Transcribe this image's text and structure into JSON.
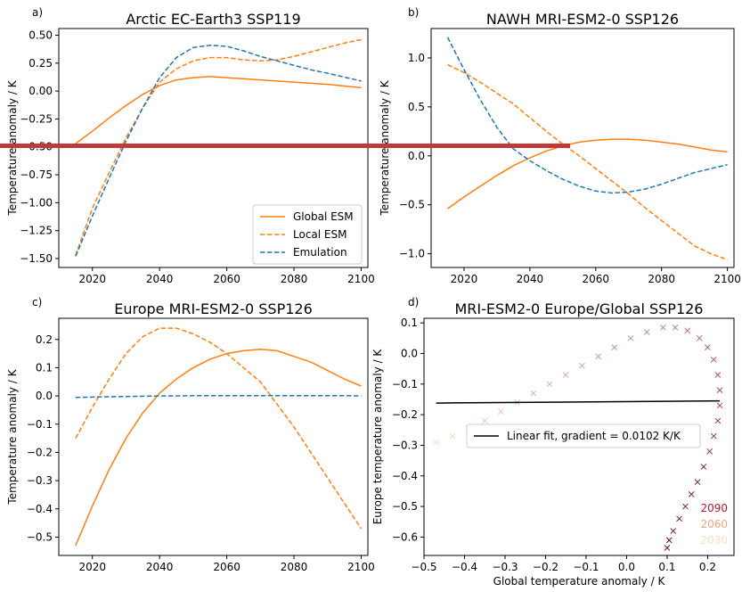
{
  "chart_data": [
    {
      "type": "line",
      "panel_letter": "a)",
      "title": "Arctic EC-Earth3 SSP119",
      "ylabel": "Temperature anomaly / K",
      "xlabel": "",
      "xlim": [
        2010,
        2102
      ],
      "ylim": [
        -1.58,
        0.56
      ],
      "xticks": [
        2020,
        2040,
        2060,
        2080,
        2100
      ],
      "yticks": [
        -1.5,
        -1.25,
        -1.0,
        -0.75,
        -0.5,
        -0.25,
        0.0,
        0.25,
        0.5
      ],
      "ytick_labels": [
        "−1.50",
        "−1.25",
        "−1.00",
        "−0.75",
        "−0.50",
        "−0.25",
        "0.00",
        "0.25",
        "0.50"
      ],
      "legend": {
        "placement": "lower-right",
        "entries": [
          "Global ESM",
          "Local ESM",
          "Emulation"
        ]
      },
      "series": [
        {
          "name": "Global ESM",
          "color": "#ff7f0e",
          "dash": "solid",
          "x": [
            2015,
            2020,
            2025,
            2030,
            2035,
            2040,
            2045,
            2050,
            2055,
            2060,
            2065,
            2070,
            2075,
            2080,
            2085,
            2090,
            2095,
            2100
          ],
          "y": [
            -0.47,
            -0.36,
            -0.24,
            -0.13,
            -0.03,
            0.05,
            0.1,
            0.12,
            0.13,
            0.12,
            0.11,
            0.1,
            0.09,
            0.08,
            0.07,
            0.06,
            0.045,
            0.03
          ]
        },
        {
          "name": "Local ESM",
          "color": "#ff7f0e",
          "dash": "dashed",
          "x": [
            2015,
            2020,
            2025,
            2030,
            2035,
            2040,
            2045,
            2050,
            2055,
            2060,
            2065,
            2070,
            2075,
            2080,
            2085,
            2090,
            2095,
            2100
          ],
          "y": [
            -1.47,
            -1.05,
            -0.73,
            -0.42,
            -0.15,
            0.08,
            0.2,
            0.27,
            0.3,
            0.3,
            0.28,
            0.27,
            0.28,
            0.31,
            0.35,
            0.39,
            0.43,
            0.46
          ]
        },
        {
          "name": "Emulation",
          "color": "#1f77b4",
          "dash": "dashed",
          "x": [
            2015,
            2020,
            2025,
            2030,
            2035,
            2040,
            2045,
            2050,
            2055,
            2060,
            2065,
            2070,
            2075,
            2080,
            2085,
            2090,
            2095,
            2100
          ],
          "y": [
            -1.48,
            -1.12,
            -0.78,
            -0.45,
            -0.15,
            0.12,
            0.3,
            0.39,
            0.41,
            0.4,
            0.36,
            0.31,
            0.27,
            0.23,
            0.19,
            0.16,
            0.125,
            0.09
          ]
        }
      ]
    },
    {
      "type": "line",
      "panel_letter": "b)",
      "title": "NAWH MRI-ESM2-0 SSP126",
      "ylabel": "Temperature anomaly / K",
      "xlabel": "",
      "xlim": [
        2010,
        2102
      ],
      "ylim": [
        -1.14,
        1.3
      ],
      "xticks": [
        2020,
        2040,
        2060,
        2080,
        2100
      ],
      "yticks": [
        -1.0,
        -0.5,
        0.0,
        0.5,
        1.0
      ],
      "ytick_labels": [
        "−1.0",
        "−0.5",
        "0.0",
        "0.5",
        "1.0"
      ],
      "series": [
        {
          "name": "Global ESM",
          "color": "#ff7f0e",
          "dash": "solid",
          "x": [
            2015,
            2020,
            2025,
            2030,
            2035,
            2040,
            2045,
            2050,
            2055,
            2060,
            2065,
            2070,
            2075,
            2080,
            2085,
            2090,
            2095,
            2100
          ],
          "y": [
            -0.54,
            -0.42,
            -0.31,
            -0.2,
            -0.1,
            -0.02,
            0.05,
            0.1,
            0.14,
            0.16,
            0.17,
            0.17,
            0.16,
            0.14,
            0.12,
            0.09,
            0.06,
            0.04
          ]
        },
        {
          "name": "Local ESM",
          "color": "#ff7f0e",
          "dash": "dashed",
          "x": [
            2015,
            2020,
            2025,
            2030,
            2035,
            2040,
            2045,
            2050,
            2055,
            2060,
            2065,
            2070,
            2075,
            2080,
            2085,
            2090,
            2095,
            2100
          ],
          "y": [
            0.93,
            0.85,
            0.75,
            0.64,
            0.53,
            0.39,
            0.25,
            0.12,
            0.0,
            -0.13,
            -0.26,
            -0.39,
            -0.53,
            -0.66,
            -0.79,
            -0.92,
            -1.0,
            -1.06
          ]
        },
        {
          "name": "Emulation",
          "color": "#1f77b4",
          "dash": "dashed",
          "x": [
            2015,
            2020,
            2025,
            2030,
            2035,
            2040,
            2045,
            2050,
            2055,
            2060,
            2065,
            2070,
            2075,
            2080,
            2085,
            2090,
            2095,
            2100
          ],
          "y": [
            1.21,
            0.88,
            0.57,
            0.29,
            0.07,
            -0.05,
            -0.15,
            -0.24,
            -0.31,
            -0.36,
            -0.38,
            -0.37,
            -0.34,
            -0.29,
            -0.23,
            -0.17,
            -0.13,
            -0.09
          ]
        }
      ]
    },
    {
      "type": "line",
      "panel_letter": "c)",
      "title": "Europe MRI-ESM2-0 SSP126",
      "ylabel": "Temperature anomaly / K",
      "xlabel": "",
      "xlim": [
        2010,
        2102
      ],
      "ylim": [
        -0.565,
        0.275
      ],
      "xticks": [
        2020,
        2040,
        2060,
        2080,
        2100
      ],
      "yticks": [
        -0.5,
        -0.4,
        -0.3,
        -0.2,
        -0.1,
        0.0,
        0.1,
        0.2
      ],
      "ytick_labels": [
        "−0.5",
        "−0.4",
        "−0.3",
        "−0.2",
        "−0.1",
        "0.0",
        "0.1",
        "0.2"
      ],
      "series": [
        {
          "name": "Global ESM",
          "color": "#ff7f0e",
          "dash": "solid",
          "x": [
            2015,
            2020,
            2025,
            2030,
            2035,
            2040,
            2045,
            2050,
            2055,
            2060,
            2065,
            2070,
            2075,
            2080,
            2085,
            2090,
            2095,
            2100
          ],
          "y": [
            -0.53,
            -0.39,
            -0.26,
            -0.15,
            -0.06,
            0.01,
            0.06,
            0.1,
            0.13,
            0.15,
            0.16,
            0.165,
            0.16,
            0.14,
            0.12,
            0.09,
            0.06,
            0.035
          ]
        },
        {
          "name": "Local ESM",
          "color": "#ff7f0e",
          "dash": "dashed",
          "x": [
            2015,
            2020,
            2025,
            2030,
            2035,
            2040,
            2045,
            2050,
            2055,
            2060,
            2065,
            2070,
            2075,
            2080,
            2085,
            2090,
            2095,
            2100
          ],
          "y": [
            -0.15,
            -0.04,
            0.06,
            0.15,
            0.21,
            0.24,
            0.24,
            0.22,
            0.19,
            0.15,
            0.1,
            0.05,
            -0.03,
            -0.11,
            -0.2,
            -0.29,
            -0.38,
            -0.47
          ]
        },
        {
          "name": "Emulation",
          "color": "#1f77b4",
          "dash": "dashed",
          "x": [
            2015,
            2020,
            2025,
            2030,
            2035,
            2040,
            2045,
            2050,
            2055,
            2060,
            2065,
            2070,
            2075,
            2080,
            2085,
            2090,
            2095,
            2100
          ],
          "y": [
            -0.005,
            -0.004,
            -0.003,
            -0.002,
            -0.001,
            0.0,
            0.0,
            0.001,
            0.001,
            0.001,
            0.001,
            0.001,
            0.001,
            0.001,
            0.001,
            0.001,
            0.001,
            0.0
          ]
        }
      ]
    },
    {
      "type": "scatter",
      "panel_letter": "d)",
      "title": "MRI-ESM2-0 Europe/Global SSP126",
      "xlabel": "Global temperature anomaly / K",
      "ylabel": "Europe temperature anomaly / K",
      "xlim": [
        -0.5,
        0.265
      ],
      "ylim": [
        -0.66,
        0.115
      ],
      "xticks": [
        -0.5,
        -0.4,
        -0.3,
        -0.2,
        -0.1,
        0.0,
        0.1,
        0.2
      ],
      "xtick_labels": [
        "−0.5",
        "−0.4",
        "−0.3",
        "−0.2",
        "−0.1",
        "0.0",
        "0.1",
        "0.2"
      ],
      "yticks": [
        -0.6,
        -0.5,
        -0.4,
        -0.3,
        -0.2,
        -0.1,
        0.0,
        0.1
      ],
      "ytick_labels": [
        "−0.6",
        "−0.5",
        "−0.4",
        "−0.3",
        "−0.2",
        "−0.1",
        "0.0",
        "0.1"
      ],
      "year_labels": [
        {
          "text": "2090",
          "color": "#b2182b"
        },
        {
          "text": "2060",
          "color": "#f4a582"
        },
        {
          "text": "2030",
          "color": "#fddbc7"
        }
      ],
      "fit": {
        "label": "Linear fit, gradient = 0.0102 K/K",
        "color": "#000000",
        "x": [
          -0.47,
          0.23
        ],
        "y": [
          -0.162,
          -0.155
        ]
      },
      "legend": {
        "placement": "center-right",
        "entries": [
          "Linear fit, gradient = 0.0102 K/K"
        ]
      },
      "points": {
        "marker": "x",
        "x": [
          -0.47,
          -0.43,
          -0.39,
          -0.35,
          -0.31,
          -0.27,
          -0.23,
          -0.19,
          -0.15,
          -0.11,
          -0.07,
          -0.03,
          0.01,
          0.05,
          0.09,
          0.12,
          0.15,
          0.18,
          0.2,
          0.215,
          0.225,
          0.23,
          0.23,
          0.225,
          0.215,
          0.205,
          0.19,
          0.175,
          0.16,
          0.145,
          0.13,
          0.115,
          0.105,
          0.1
        ],
        "y": [
          -0.29,
          -0.27,
          -0.245,
          -0.22,
          -0.19,
          -0.16,
          -0.13,
          -0.1,
          -0.07,
          -0.04,
          -0.01,
          0.02,
          0.05,
          0.07,
          0.085,
          0.085,
          0.075,
          0.05,
          0.02,
          -0.02,
          -0.07,
          -0.12,
          -0.17,
          -0.22,
          -0.27,
          -0.32,
          -0.37,
          -0.42,
          -0.46,
          -0.5,
          -0.54,
          -0.58,
          -0.61,
          -0.635
        ],
        "years": [
          2015,
          2017.5,
          2020,
          2022.5,
          2025,
          2027.5,
          2030,
          2032.5,
          2035,
          2037.5,
          2040,
          2042.5,
          2045,
          2047.5,
          2050,
          2052.5,
          2055,
          2057.5,
          2060,
          2062.5,
          2065,
          2067.5,
          2070,
          2072.5,
          2075,
          2077.5,
          2080,
          2082.5,
          2085,
          2087.5,
          2090,
          2092.5,
          2095,
          2100
        ]
      }
    }
  ]
}
